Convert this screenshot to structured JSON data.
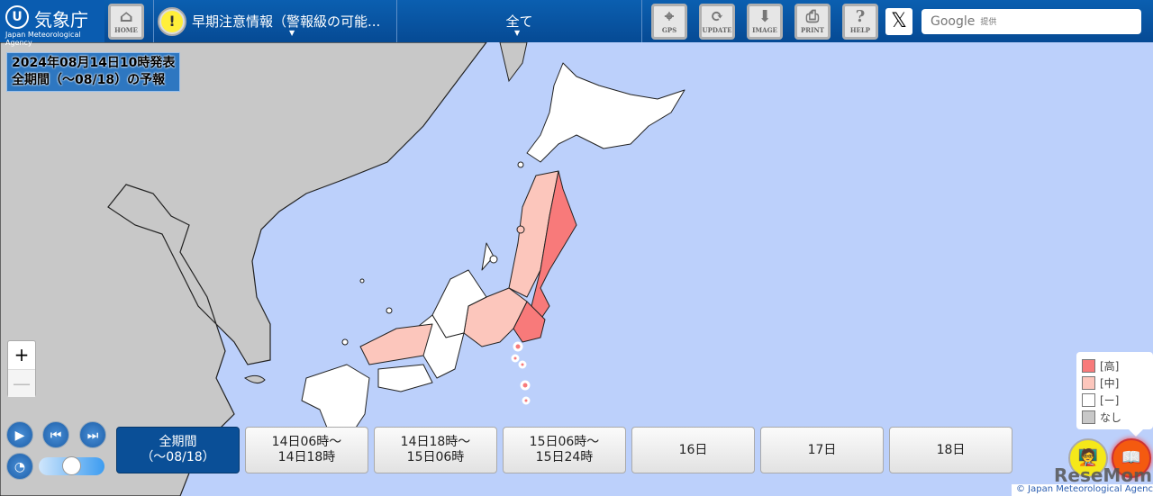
{
  "header": {
    "logo_name": "気象庁",
    "logo_en": "Japan Meteorological Agency",
    "home": "HOME",
    "element_select": "早期注意情報（警報級の可能...",
    "area_select": "全て",
    "buttons": [
      {
        "label": "GPS",
        "icon": "gps-icon"
      },
      {
        "label": "UPDATE",
        "icon": "refresh-icon"
      },
      {
        "label": "IMAGE",
        "icon": "download-icon"
      },
      {
        "label": "PRINT",
        "icon": "print-icon"
      },
      {
        "label": "HELP",
        "icon": "help-icon"
      }
    ],
    "x_label": "𝕏",
    "search_placeholder": "Google",
    "search_suffix": "提供"
  },
  "info": {
    "line1": "2024年08月14日10時発表",
    "line2": "全期間（～08/18）の予報"
  },
  "zoom": {
    "plus": "+",
    "minus": "—"
  },
  "playback": {
    "play": "▶",
    "first": "⏮",
    "last": "⏭"
  },
  "speed_slider_level": 0.4,
  "tabs": [
    {
      "label": "全期間\n（～08/18）",
      "active": true
    },
    {
      "label": "14日06時～\n14日18時"
    },
    {
      "label": "14日18時～\n15日06時"
    },
    {
      "label": "15日06時～\n15日24時"
    },
    {
      "label": "16日"
    },
    {
      "label": "17日"
    },
    {
      "label": "18日"
    }
  ],
  "legend": [
    {
      "label": "[高]",
      "color": "#f87a7a"
    },
    {
      "label": "[中]",
      "color": "#fcc6bc"
    },
    {
      "label": "[ー]",
      "color": "#ffffff"
    },
    {
      "label": "なし",
      "color": "#c8c8c8"
    }
  ],
  "colors": {
    "sea": "#bcd0fb",
    "land_other": "#c8c8c8",
    "header": "#0a57a8"
  },
  "copyright": "© Japan Meteorological Agency",
  "watermark": "ReseMom"
}
